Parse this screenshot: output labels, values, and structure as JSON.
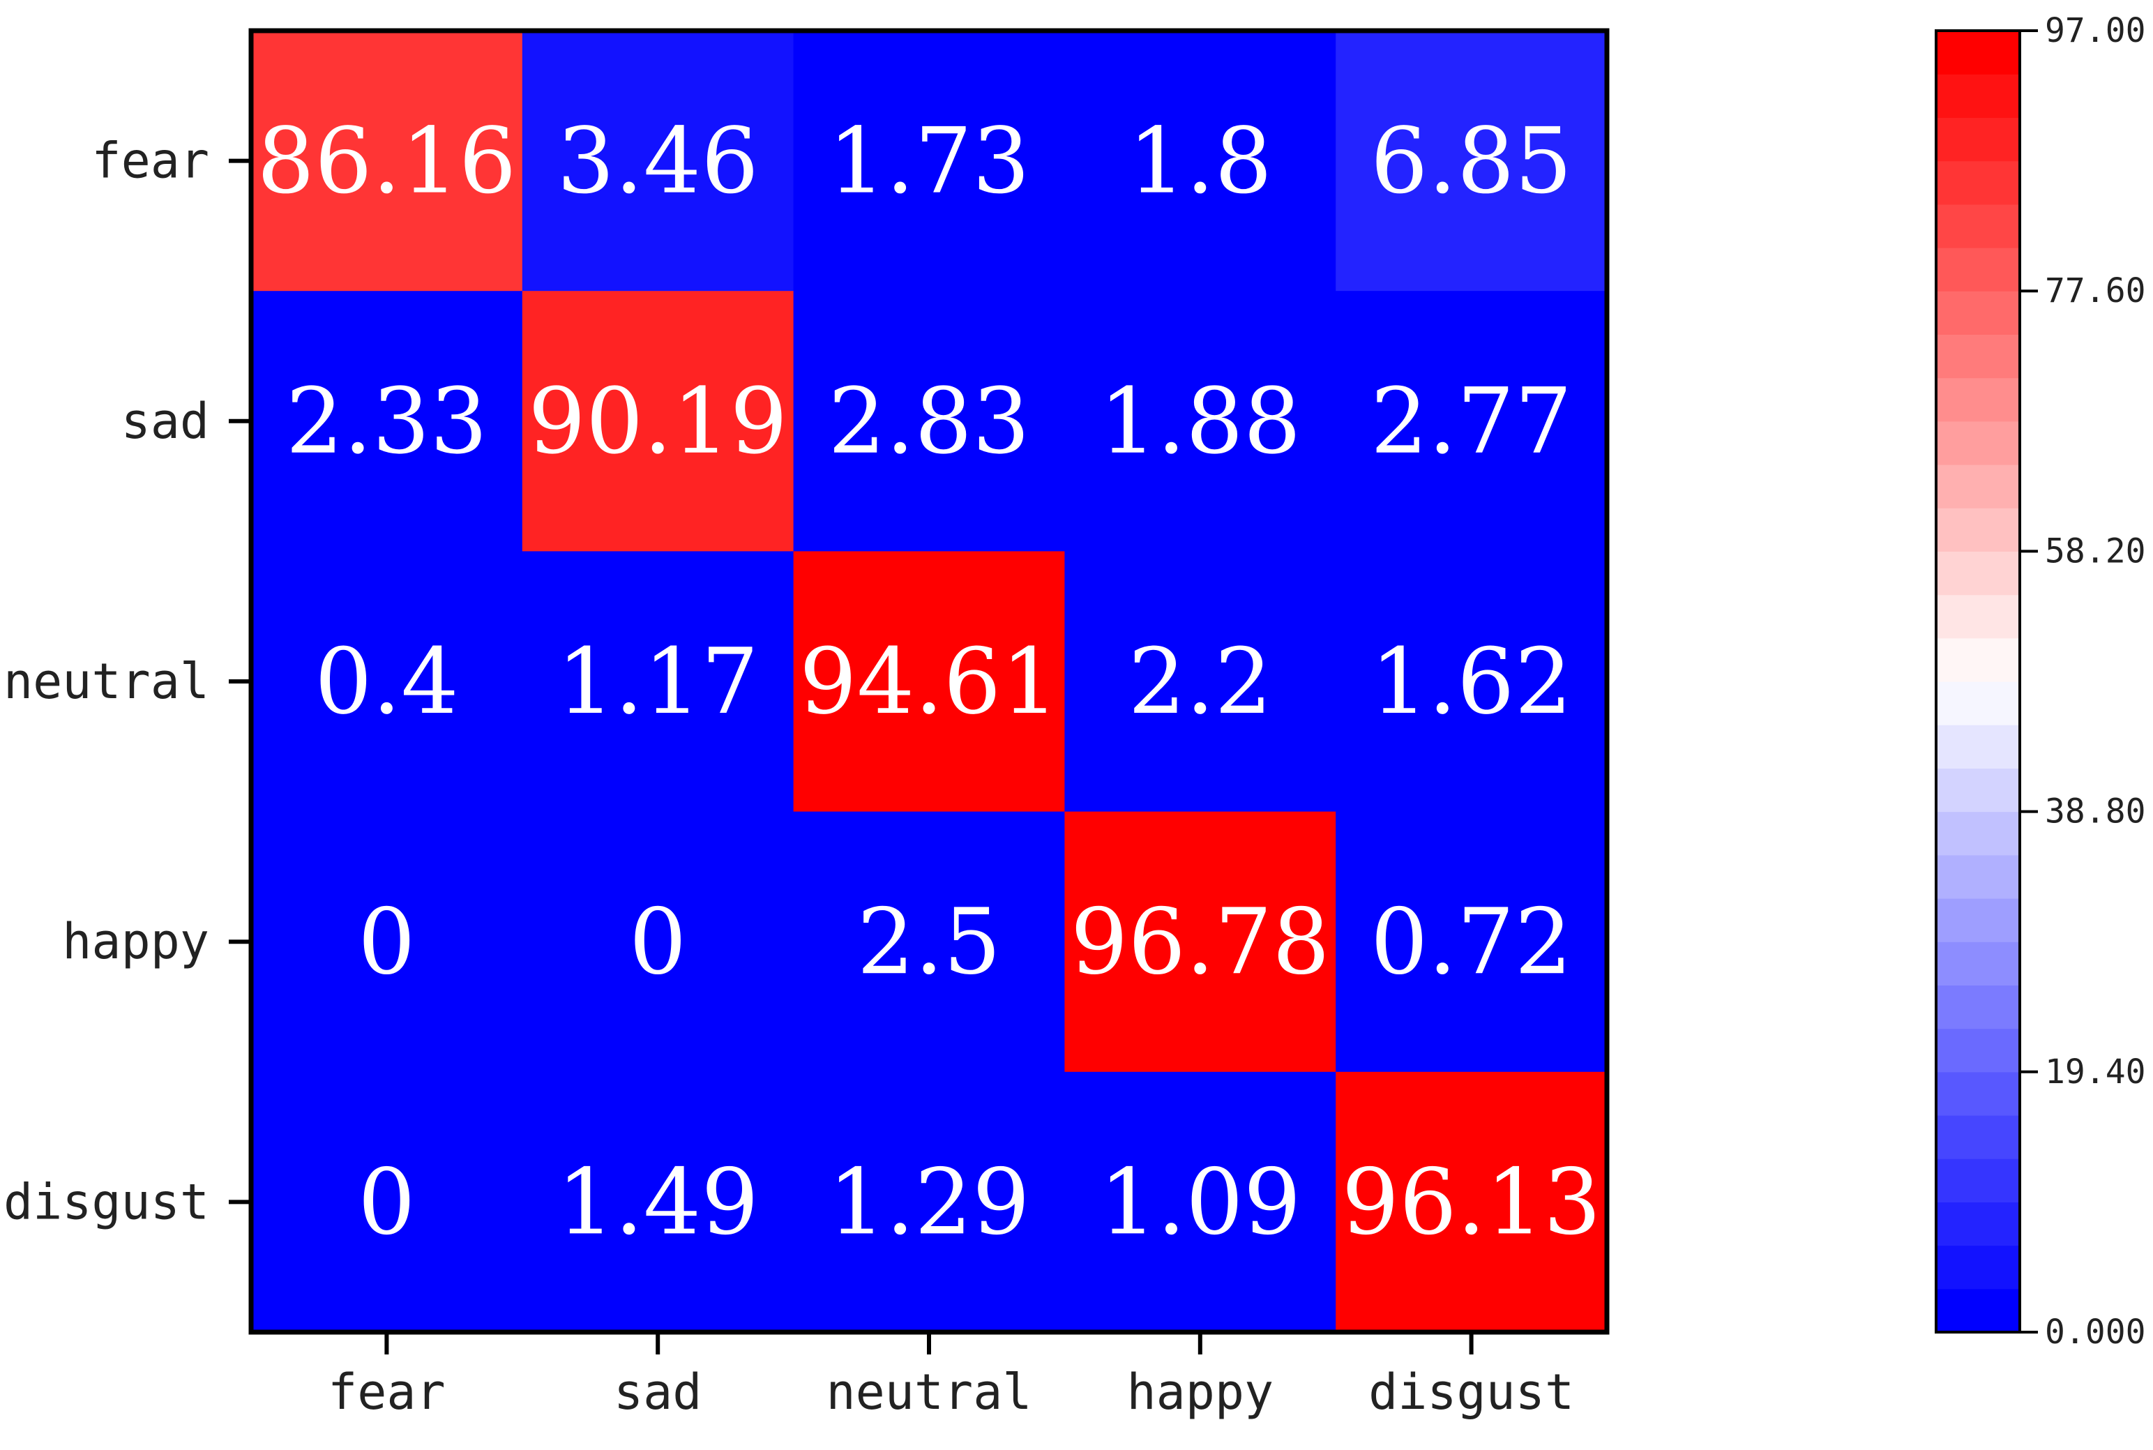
{
  "chart_data": {
    "type": "heatmap",
    "title": "",
    "xlabel": "",
    "ylabel": "",
    "row_labels": [
      "fear",
      "sad",
      "neutral",
      "happy",
      "disgust"
    ],
    "col_labels": [
      "fear",
      "sad",
      "neutral",
      "happy",
      "disgust"
    ],
    "values": [
      [
        86.16,
        3.46,
        1.73,
        1.8,
        6.85
      ],
      [
        2.33,
        90.19,
        2.83,
        1.88,
        2.77
      ],
      [
        0.4,
        1.17,
        94.61,
        2.2,
        1.62
      ],
      [
        0,
        0,
        2.5,
        96.78,
        0.72
      ],
      [
        0,
        1.49,
        1.29,
        1.09,
        96.13
      ]
    ],
    "value_labels": [
      [
        "86.16",
        "3.46",
        "1.73",
        "1.8",
        "6.85"
      ],
      [
        "2.33",
        "90.19",
        "2.83",
        "1.88",
        "2.77"
      ],
      [
        "0.4",
        "1.17",
        "94.61",
        "2.2",
        "1.62"
      ],
      [
        "0",
        "0",
        "2.5",
        "96.78",
        "0.72"
      ],
      [
        "0",
        "1.49",
        "1.29",
        "1.09",
        "96.13"
      ]
    ],
    "colorbar": {
      "range": [
        0,
        97
      ],
      "ticks": [
        0,
        19.4,
        38.8,
        58.2,
        77.6,
        97
      ],
      "tick_labels": [
        "0.000",
        "19.40",
        "38.80",
        "58.20",
        "77.60",
        "97.00"
      ],
      "low_color": "#0000ff",
      "mid_color": "#ffffff",
      "high_color": "#ff0000",
      "steps": 30,
      "placement": "right"
    },
    "grid": false
  }
}
